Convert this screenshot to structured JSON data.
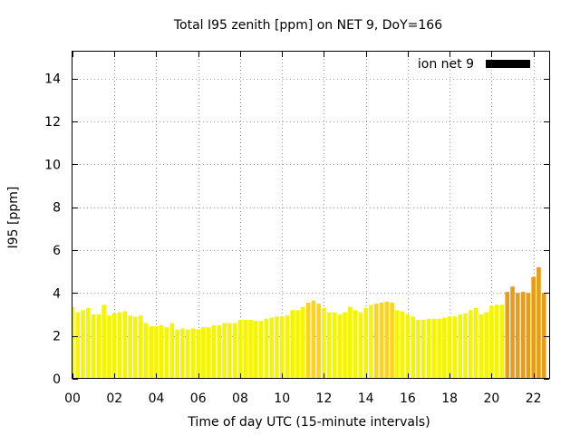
{
  "chart_data": {
    "type": "bar",
    "title": "Total I95 zenith [ppm] on NET 9, DoY=166",
    "xlabel": "Time of day UTC (15-minute intervals)",
    "ylabel": "I95 [ppm]",
    "xlim": [
      0,
      22.75
    ],
    "ylim": [
      0,
      15.25
    ],
    "xticks": [
      0,
      2,
      4,
      6,
      8,
      10,
      12,
      14,
      16,
      18,
      20,
      22
    ],
    "xtick_labels": [
      "00",
      "02",
      "04",
      "06",
      "08",
      "10",
      "12",
      "14",
      "16",
      "18",
      "20",
      "22"
    ],
    "yticks": [
      0,
      2,
      4,
      6,
      8,
      10,
      12,
      14
    ],
    "ytick_labels": [
      "0",
      "2",
      "4",
      "6",
      "8",
      "10",
      "12",
      "14"
    ],
    "grid": true,
    "legend": {
      "label": "ion net 9",
      "position": "top-right",
      "color": "#000000"
    },
    "colors": {
      "low": "#f5f500",
      "mid": "#ffd21e",
      "high": "#eb9b14"
    },
    "bar_interval_hours": 0.25,
    "series": [
      {
        "values": [
          3.35,
          3.1,
          3.2,
          3.3,
          3.0,
          3.0,
          3.45,
          2.95,
          3.05,
          3.1,
          3.15,
          2.95,
          2.9,
          2.95,
          2.6,
          2.45,
          2.45,
          2.5,
          2.4,
          2.6,
          2.3,
          2.35,
          2.3,
          2.35,
          2.3,
          2.4,
          2.4,
          2.5,
          2.5,
          2.6,
          2.6,
          2.6,
          2.75,
          2.75,
          2.75,
          2.7,
          2.7,
          2.8,
          2.85,
          2.9,
          2.9,
          2.95,
          3.2,
          3.2,
          3.35,
          3.55,
          3.65,
          3.5,
          3.3,
          3.1,
          3.1,
          3.0,
          3.1,
          3.35,
          3.2,
          3.1,
          3.3,
          3.45,
          3.5,
          3.55,
          3.6,
          3.55,
          3.2,
          3.15,
          3.0,
          2.9,
          2.75,
          2.75,
          2.8,
          2.8,
          2.8,
          2.85,
          2.9,
          2.9,
          3.0,
          3.05,
          3.2,
          3.3,
          3.0,
          3.1,
          3.4,
          3.45,
          3.45,
          4.05,
          4.3,
          4.0,
          4.05,
          4.0,
          4.75,
          5.2,
          4.0
        ]
      }
    ]
  }
}
